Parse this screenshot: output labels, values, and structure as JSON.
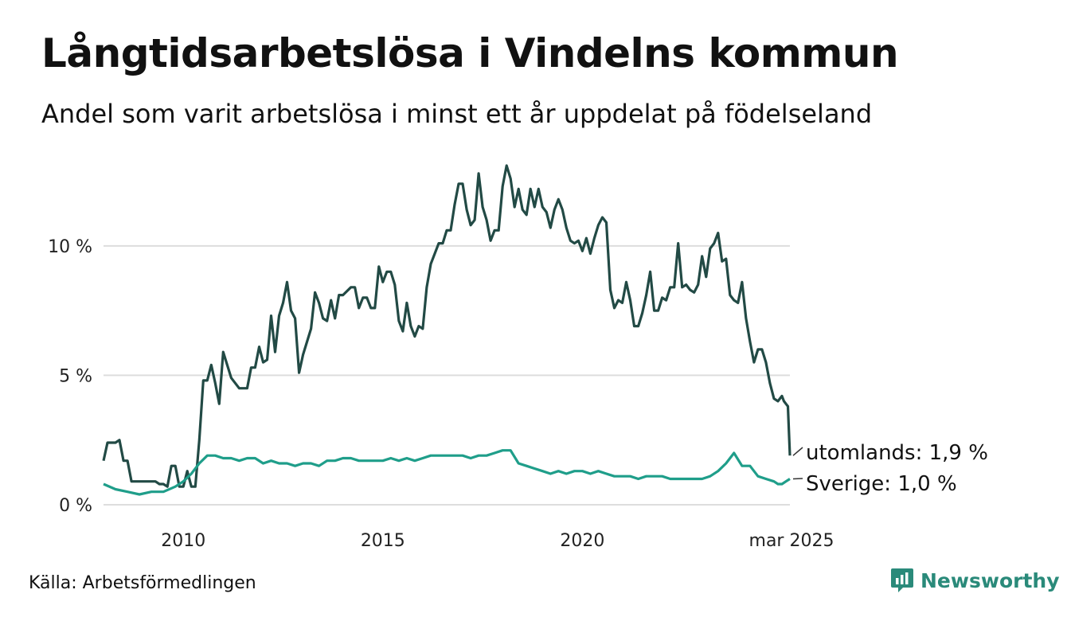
{
  "title": "Långtidsarbetslösa i Vindelns kommun",
  "subtitle": "Andel som varit arbetslösa i minst ett år uppdelat på födelseland",
  "source": "Källa: Arbetsförmedlingen",
  "brand": "Newsworthy",
  "colors": {
    "utomlands": "#224a45",
    "sverige": "#1f9e8a",
    "grid": "#dddddd",
    "brand": "#2a8a7a"
  },
  "chart_data": {
    "type": "line",
    "title": "Långtidsarbetslösa i Vindelns kommun",
    "subtitle": "Andel som varit arbetslösa i minst ett år uppdelat på födelseland",
    "xlabel": "",
    "ylabel": "",
    "xlim": [
      2008.0,
      2025.2
    ],
    "ylim": [
      0,
      13.5
    ],
    "grid": true,
    "y_ticks": [
      {
        "value": 0,
        "label": "0 %"
      },
      {
        "value": 5,
        "label": "5 %"
      },
      {
        "value": 10,
        "label": "10 %"
      }
    ],
    "x_ticks": [
      {
        "value": 2010,
        "label": "2010"
      },
      {
        "value": 2015,
        "label": "2015"
      },
      {
        "value": 2020,
        "label": "2020"
      },
      {
        "value": 2025.2,
        "label": "mar 2025"
      }
    ],
    "series": [
      {
        "name": "utomlands",
        "end_label": "utomlands: 1,9 %",
        "points": [
          [
            2008.0,
            1.7
          ],
          [
            2008.1,
            2.4
          ],
          [
            2008.3,
            2.4
          ],
          [
            2008.4,
            2.5
          ],
          [
            2008.5,
            1.7
          ],
          [
            2008.6,
            1.7
          ],
          [
            2008.7,
            0.9
          ],
          [
            2008.9,
            0.9
          ],
          [
            2009.1,
            0.9
          ],
          [
            2009.3,
            0.9
          ],
          [
            2009.4,
            0.8
          ],
          [
            2009.5,
            0.8
          ],
          [
            2009.6,
            0.7
          ],
          [
            2009.7,
            1.5
          ],
          [
            2009.8,
            1.5
          ],
          [
            2009.9,
            0.7
          ],
          [
            2010.0,
            0.7
          ],
          [
            2010.1,
            1.3
          ],
          [
            2010.2,
            0.7
          ],
          [
            2010.3,
            0.7
          ],
          [
            2010.4,
            2.5
          ],
          [
            2010.5,
            4.8
          ],
          [
            2010.6,
            4.8
          ],
          [
            2010.7,
            5.4
          ],
          [
            2010.8,
            4.7
          ],
          [
            2010.9,
            3.9
          ],
          [
            2011.0,
            5.9
          ],
          [
            2011.2,
            4.9
          ],
          [
            2011.4,
            4.5
          ],
          [
            2011.6,
            4.5
          ],
          [
            2011.7,
            5.3
          ],
          [
            2011.8,
            5.3
          ],
          [
            2011.9,
            6.1
          ],
          [
            2012.0,
            5.5
          ],
          [
            2012.1,
            5.6
          ],
          [
            2012.2,
            7.3
          ],
          [
            2012.3,
            5.9
          ],
          [
            2012.4,
            7.3
          ],
          [
            2012.5,
            7.8
          ],
          [
            2012.6,
            8.6
          ],
          [
            2012.7,
            7.5
          ],
          [
            2012.8,
            7.2
          ],
          [
            2012.9,
            5.1
          ],
          [
            2013.0,
            5.8
          ],
          [
            2013.2,
            6.8
          ],
          [
            2013.3,
            8.2
          ],
          [
            2013.4,
            7.8
          ],
          [
            2013.5,
            7.2
          ],
          [
            2013.6,
            7.1
          ],
          [
            2013.7,
            7.9
          ],
          [
            2013.8,
            7.2
          ],
          [
            2013.9,
            8.1
          ],
          [
            2014.0,
            8.1
          ],
          [
            2014.2,
            8.4
          ],
          [
            2014.3,
            8.4
          ],
          [
            2014.4,
            7.6
          ],
          [
            2014.5,
            8.0
          ],
          [
            2014.6,
            8.0
          ],
          [
            2014.7,
            7.6
          ],
          [
            2014.8,
            7.6
          ],
          [
            2014.9,
            9.2
          ],
          [
            2015.0,
            8.6
          ],
          [
            2015.1,
            9.0
          ],
          [
            2015.2,
            9.0
          ],
          [
            2015.3,
            8.5
          ],
          [
            2015.4,
            7.1
          ],
          [
            2015.5,
            6.7
          ],
          [
            2015.6,
            7.8
          ],
          [
            2015.7,
            6.9
          ],
          [
            2015.8,
            6.5
          ],
          [
            2015.9,
            6.9
          ],
          [
            2016.0,
            6.8
          ],
          [
            2016.1,
            8.4
          ],
          [
            2016.2,
            9.3
          ],
          [
            2016.3,
            9.7
          ],
          [
            2016.4,
            10.1
          ],
          [
            2016.5,
            10.1
          ],
          [
            2016.6,
            10.6
          ],
          [
            2016.7,
            10.6
          ],
          [
            2016.8,
            11.6
          ],
          [
            2016.9,
            12.4
          ],
          [
            2017.0,
            12.4
          ],
          [
            2017.1,
            11.4
          ],
          [
            2017.2,
            10.8
          ],
          [
            2017.3,
            11.0
          ],
          [
            2017.4,
            12.8
          ],
          [
            2017.5,
            11.5
          ],
          [
            2017.6,
            11.0
          ],
          [
            2017.7,
            10.2
          ],
          [
            2017.8,
            10.6
          ],
          [
            2017.9,
            10.6
          ],
          [
            2018.0,
            12.3
          ],
          [
            2018.1,
            13.1
          ],
          [
            2018.2,
            12.6
          ],
          [
            2018.3,
            11.5
          ],
          [
            2018.4,
            12.2
          ],
          [
            2018.5,
            11.4
          ],
          [
            2018.6,
            11.2
          ],
          [
            2018.7,
            12.2
          ],
          [
            2018.8,
            11.5
          ],
          [
            2018.9,
            12.2
          ],
          [
            2019.0,
            11.5
          ],
          [
            2019.1,
            11.3
          ],
          [
            2019.2,
            10.7
          ],
          [
            2019.3,
            11.4
          ],
          [
            2019.4,
            11.8
          ],
          [
            2019.5,
            11.4
          ],
          [
            2019.6,
            10.7
          ],
          [
            2019.7,
            10.2
          ],
          [
            2019.8,
            10.1
          ],
          [
            2019.9,
            10.2
          ],
          [
            2020.0,
            9.8
          ],
          [
            2020.1,
            10.3
          ],
          [
            2020.2,
            9.7
          ],
          [
            2020.3,
            10.3
          ],
          [
            2020.4,
            10.8
          ],
          [
            2020.5,
            11.1
          ],
          [
            2020.6,
            10.9
          ],
          [
            2020.7,
            8.3
          ],
          [
            2020.8,
            7.6
          ],
          [
            2020.9,
            7.9
          ],
          [
            2021.0,
            7.8
          ],
          [
            2021.1,
            8.6
          ],
          [
            2021.2,
            7.9
          ],
          [
            2021.3,
            6.9
          ],
          [
            2021.4,
            6.9
          ],
          [
            2021.5,
            7.4
          ],
          [
            2021.6,
            8.1
          ],
          [
            2021.7,
            9.0
          ],
          [
            2021.8,
            7.5
          ],
          [
            2021.9,
            7.5
          ],
          [
            2022.0,
            8.0
          ],
          [
            2022.1,
            7.9
          ],
          [
            2022.2,
            8.4
          ],
          [
            2022.3,
            8.4
          ],
          [
            2022.4,
            10.1
          ],
          [
            2022.5,
            8.4
          ],
          [
            2022.6,
            8.5
          ],
          [
            2022.7,
            8.3
          ],
          [
            2022.8,
            8.2
          ],
          [
            2022.9,
            8.5
          ],
          [
            2023.0,
            9.6
          ],
          [
            2023.1,
            8.8
          ],
          [
            2023.2,
            9.9
          ],
          [
            2023.3,
            10.1
          ],
          [
            2023.4,
            10.5
          ],
          [
            2023.5,
            9.4
          ],
          [
            2023.6,
            9.5
          ],
          [
            2023.7,
            8.1
          ],
          [
            2023.8,
            7.9
          ],
          [
            2023.9,
            7.8
          ],
          [
            2024.0,
            8.6
          ],
          [
            2024.1,
            7.2
          ],
          [
            2024.2,
            6.3
          ],
          [
            2024.3,
            5.5
          ],
          [
            2024.4,
            6.0
          ],
          [
            2024.5,
            6.0
          ],
          [
            2024.6,
            5.5
          ],
          [
            2024.7,
            4.7
          ],
          [
            2024.8,
            4.1
          ],
          [
            2024.9,
            4.0
          ],
          [
            2025.0,
            4.2
          ],
          [
            2025.05,
            4.0
          ],
          [
            2025.1,
            3.9
          ],
          [
            2025.15,
            3.8
          ],
          [
            2025.2,
            1.9
          ]
        ]
      },
      {
        "name": "Sverige",
        "end_label": "Sverige: 1,0 %",
        "points": [
          [
            2008.0,
            0.8
          ],
          [
            2008.3,
            0.6
          ],
          [
            2008.6,
            0.5
          ],
          [
            2008.9,
            0.4
          ],
          [
            2009.2,
            0.5
          ],
          [
            2009.5,
            0.5
          ],
          [
            2009.8,
            0.7
          ],
          [
            2010.0,
            0.9
          ],
          [
            2010.2,
            1.2
          ],
          [
            2010.4,
            1.6
          ],
          [
            2010.6,
            1.9
          ],
          [
            2010.8,
            1.9
          ],
          [
            2011.0,
            1.8
          ],
          [
            2011.2,
            1.8
          ],
          [
            2011.4,
            1.7
          ],
          [
            2011.6,
            1.8
          ],
          [
            2011.8,
            1.8
          ],
          [
            2012.0,
            1.6
          ],
          [
            2012.2,
            1.7
          ],
          [
            2012.4,
            1.6
          ],
          [
            2012.6,
            1.6
          ],
          [
            2012.8,
            1.5
          ],
          [
            2013.0,
            1.6
          ],
          [
            2013.2,
            1.6
          ],
          [
            2013.4,
            1.5
          ],
          [
            2013.6,
            1.7
          ],
          [
            2013.8,
            1.7
          ],
          [
            2014.0,
            1.8
          ],
          [
            2014.2,
            1.8
          ],
          [
            2014.4,
            1.7
          ],
          [
            2014.6,
            1.7
          ],
          [
            2014.8,
            1.7
          ],
          [
            2015.0,
            1.7
          ],
          [
            2015.2,
            1.8
          ],
          [
            2015.4,
            1.7
          ],
          [
            2015.6,
            1.8
          ],
          [
            2015.8,
            1.7
          ],
          [
            2016.0,
            1.8
          ],
          [
            2016.2,
            1.9
          ],
          [
            2016.4,
            1.9
          ],
          [
            2016.6,
            1.9
          ],
          [
            2016.8,
            1.9
          ],
          [
            2017.0,
            1.9
          ],
          [
            2017.2,
            1.8
          ],
          [
            2017.4,
            1.9
          ],
          [
            2017.6,
            1.9
          ],
          [
            2017.8,
            2.0
          ],
          [
            2018.0,
            2.1
          ],
          [
            2018.2,
            2.1
          ],
          [
            2018.4,
            1.6
          ],
          [
            2018.6,
            1.5
          ],
          [
            2018.8,
            1.4
          ],
          [
            2019.0,
            1.3
          ],
          [
            2019.2,
            1.2
          ],
          [
            2019.4,
            1.3
          ],
          [
            2019.6,
            1.2
          ],
          [
            2019.8,
            1.3
          ],
          [
            2020.0,
            1.3
          ],
          [
            2020.2,
            1.2
          ],
          [
            2020.4,
            1.3
          ],
          [
            2020.6,
            1.2
          ],
          [
            2020.8,
            1.1
          ],
          [
            2021.0,
            1.1
          ],
          [
            2021.2,
            1.1
          ],
          [
            2021.4,
            1.0
          ],
          [
            2021.6,
            1.1
          ],
          [
            2021.8,
            1.1
          ],
          [
            2022.0,
            1.1
          ],
          [
            2022.2,
            1.0
          ],
          [
            2022.4,
            1.0
          ],
          [
            2022.6,
            1.0
          ],
          [
            2022.8,
            1.0
          ],
          [
            2023.0,
            1.0
          ],
          [
            2023.2,
            1.1
          ],
          [
            2023.4,
            1.3
          ],
          [
            2023.6,
            1.6
          ],
          [
            2023.8,
            2.0
          ],
          [
            2024.0,
            1.5
          ],
          [
            2024.2,
            1.5
          ],
          [
            2024.4,
            1.1
          ],
          [
            2024.6,
            1.0
          ],
          [
            2024.8,
            0.9
          ],
          [
            2024.9,
            0.8
          ],
          [
            2025.0,
            0.8
          ],
          [
            2025.1,
            0.9
          ],
          [
            2025.2,
            1.0
          ]
        ]
      }
    ]
  }
}
